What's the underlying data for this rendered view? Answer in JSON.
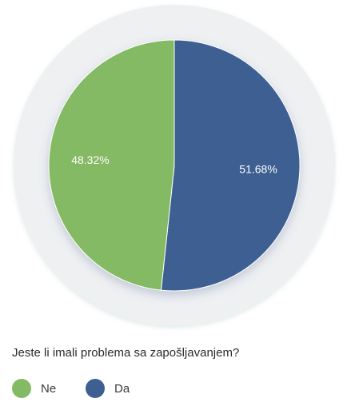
{
  "chart_data": {
    "type": "pie",
    "title": "Jeste li imali problema sa zapošljavanjem?",
    "categories": [
      "Ne",
      "Da"
    ],
    "values": [
      48.32,
      51.68
    ],
    "value_labels": [
      "48.32%",
      "51.68%"
    ],
    "colors": [
      "#84ba64",
      "#3e5f92"
    ],
    "legend_position": "bottom-left"
  },
  "colors": {
    "halo": "#eef0f2",
    "slice_border": "#ffffff",
    "label_text": "#ffffff"
  }
}
